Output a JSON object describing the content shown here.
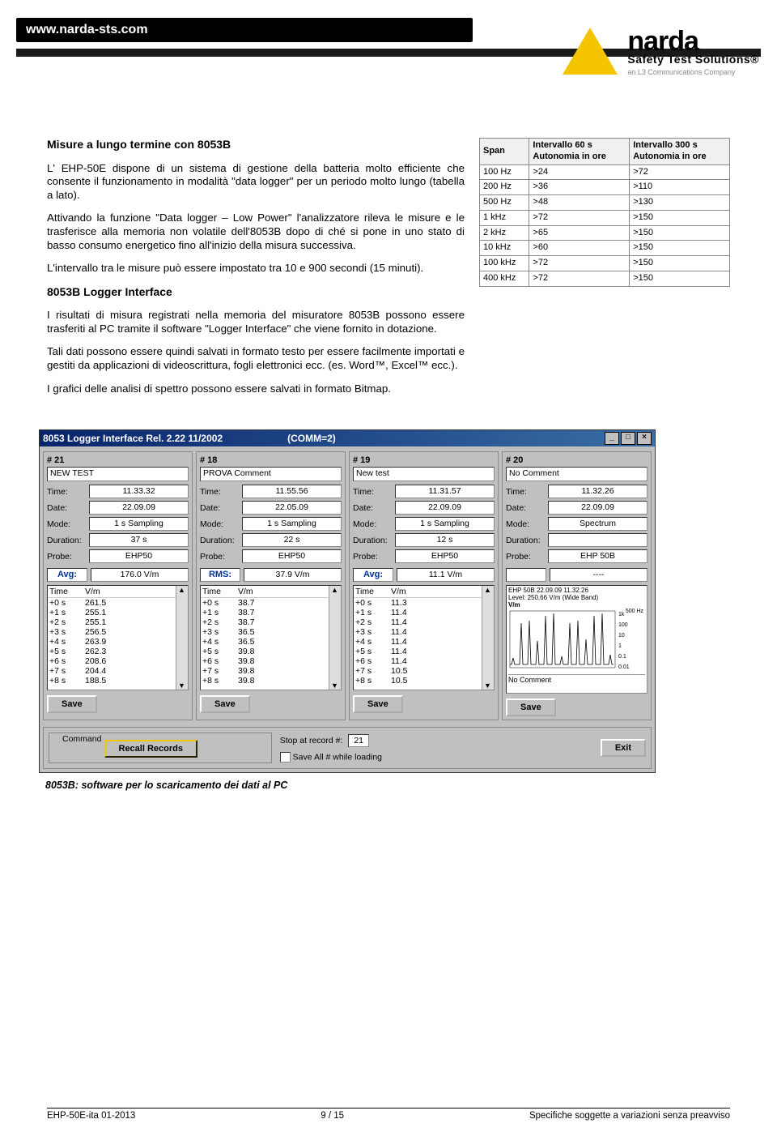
{
  "header": {
    "url": "www.narda-sts.com"
  },
  "logo": {
    "name1": "narda",
    "name2": "Safety Test Solutions®",
    "name3": "an L3 Communications Company"
  },
  "section1": {
    "title": "Misure a lungo termine con 8053B",
    "p1": "L' EHP-50E dispone di un sistema di gestione della batteria molto efficiente che consente il funzionamento in modalità \"data logger\" per un periodo molto lungo (tabella a lato).",
    "p2": "Attivando la funzione \"Data logger – Low Power\" l'analizzatore rileva le misure e le trasferisce alla memoria non volatile dell'8053B dopo di ché si pone in uno stato di basso consumo energetico fino all'inizio della misura successiva.",
    "p3": "L'intervallo tra le misure può essere impostato tra 10 e 900 secondi (15 minuti)."
  },
  "section2": {
    "title": "8053B Logger Interface",
    "p1": "I risultati di misura registrati nella memoria del misuratore 8053B possono essere trasferiti al PC tramite il software \"Logger Interface\" che viene fornito in dotazione.",
    "p2": "Tali dati possono essere quindi salvati in formato testo per essere facilmente importati e gestiti da applicazioni di videoscrittura, fogli elettronici ecc. (es. Word™, Excel™ ecc.).",
    "p3": "I grafici delle analisi di spettro possono essere salvati in formato Bitmap."
  },
  "autonomy_table": {
    "headers": [
      "Span",
      "Intervallo 60 s\nAutonomia in ore",
      "Intervallo 300 s\nAutonomia in ore"
    ],
    "rows": [
      [
        "100 Hz",
        ">24",
        ">72"
      ],
      [
        "200 Hz",
        ">36",
        ">110"
      ],
      [
        "500 Hz",
        ">48",
        ">130"
      ],
      [
        "1 kHz",
        ">72",
        ">150"
      ],
      [
        "2 kHz",
        ">65",
        ">150"
      ],
      [
        "10 kHz",
        ">60",
        ">150"
      ],
      [
        "100 kHz",
        ">72",
        ">150"
      ],
      [
        "400 kHz",
        ">72",
        ">150"
      ]
    ]
  },
  "app": {
    "title": "8053 Logger Interface Rel. 2.22 11/2002",
    "comm": "(COMM=2)",
    "save_label": "Save",
    "command_label": "Command",
    "recall_label": "Recall Records",
    "stop_label": "Stop at record #:",
    "stop_value": "21",
    "saveall_label": "Save All # while loading",
    "exit_label": "Exit",
    "panels": [
      {
        "id": "# 21",
        "comment": "NEW TEST",
        "fields": [
          [
            "Time:",
            "11.33.32"
          ],
          [
            "Date:",
            "22.09.09"
          ],
          [
            "Mode:",
            "1 s Sampling"
          ],
          [
            "Duration:",
            "37 s"
          ],
          [
            "Probe:",
            "EHP50"
          ]
        ],
        "stat": [
          "Avg:",
          "176.0 V/m"
        ],
        "grid_header": [
          "Time",
          "V/m"
        ],
        "grid": [
          [
            "+0 s",
            "261.5"
          ],
          [
            "+1 s",
            "255.1"
          ],
          [
            "+2 s",
            "255.1"
          ],
          [
            "+3 s",
            "256.5"
          ],
          [
            "+4 s",
            "263.9"
          ],
          [
            "+5 s",
            "262.3"
          ],
          [
            "+6 s",
            "208.6"
          ],
          [
            "+7 s",
            "204.4"
          ],
          [
            "+8 s",
            "188.5"
          ]
        ]
      },
      {
        "id": "# 18",
        "comment": "PROVA Comment",
        "fields": [
          [
            "Time:",
            "11.55.56"
          ],
          [
            "Date:",
            "22.05.09"
          ],
          [
            "Mode:",
            "1 s Sampling"
          ],
          [
            "Duration:",
            "22 s"
          ],
          [
            "Probe:",
            "EHP50"
          ]
        ],
        "stat": [
          "RMS:",
          "37.9 V/m"
        ],
        "grid_header": [
          "Time",
          "V/m"
        ],
        "grid": [
          [
            "+0 s",
            "38.7"
          ],
          [
            "+1 s",
            "38.7"
          ],
          [
            "+2 s",
            "38.7"
          ],
          [
            "+3 s",
            "36.5"
          ],
          [
            "+4 s",
            "36.5"
          ],
          [
            "+5 s",
            "39.8"
          ],
          [
            "+6 s",
            "39.8"
          ],
          [
            "+7 s",
            "39.8"
          ],
          [
            "+8 s",
            "39.8"
          ]
        ]
      },
      {
        "id": "# 19",
        "comment": "New test",
        "fields": [
          [
            "Time:",
            "11.31.57"
          ],
          [
            "Date:",
            "22.09.09"
          ],
          [
            "Mode:",
            "1 s Sampling"
          ],
          [
            "Duration:",
            "12 s"
          ],
          [
            "Probe:",
            "EHP50"
          ]
        ],
        "stat": [
          "Avg:",
          "11.1 V/m"
        ],
        "grid_header": [
          "Time",
          "V/m"
        ],
        "grid": [
          [
            "+0 s",
            "11.3"
          ],
          [
            "+1 s",
            "11.4"
          ],
          [
            "+2 s",
            "11.4"
          ],
          [
            "+3 s",
            "11.4"
          ],
          [
            "+4 s",
            "11.4"
          ],
          [
            "+5 s",
            "11.4"
          ],
          [
            "+6 s",
            "11.4"
          ],
          [
            "+7 s",
            "10.5"
          ],
          [
            "+8 s",
            "10.5"
          ]
        ]
      },
      {
        "id": "# 20",
        "comment": "No Comment",
        "fields": [
          [
            "Time:",
            "11.32.26"
          ],
          [
            "Date:",
            "22.09.09"
          ],
          [
            "Mode:",
            "Spectrum"
          ],
          [
            "Duration:",
            ""
          ],
          [
            "Probe:",
            "EHP 50B"
          ]
        ],
        "stat": [
          "",
          "----"
        ],
        "chart_title": "EHP 50B  22.09.09  11.32.26\nLevel: 250,66 V/m (Wide Band)",
        "chart_sub": "No Comment",
        "chart_ylabels": [
          "1k",
          "100",
          "10",
          "1",
          "0.1",
          "0.01"
        ],
        "chart_xmax": "500 Hz"
      }
    ]
  },
  "caption": "8053B: software per lo scaricamento dei dati al PC",
  "footer": {
    "left": "EHP-50E-ita 01-2013",
    "mid": "9 / 15",
    "right": "Specifiche soggette a variazioni senza preavviso"
  }
}
